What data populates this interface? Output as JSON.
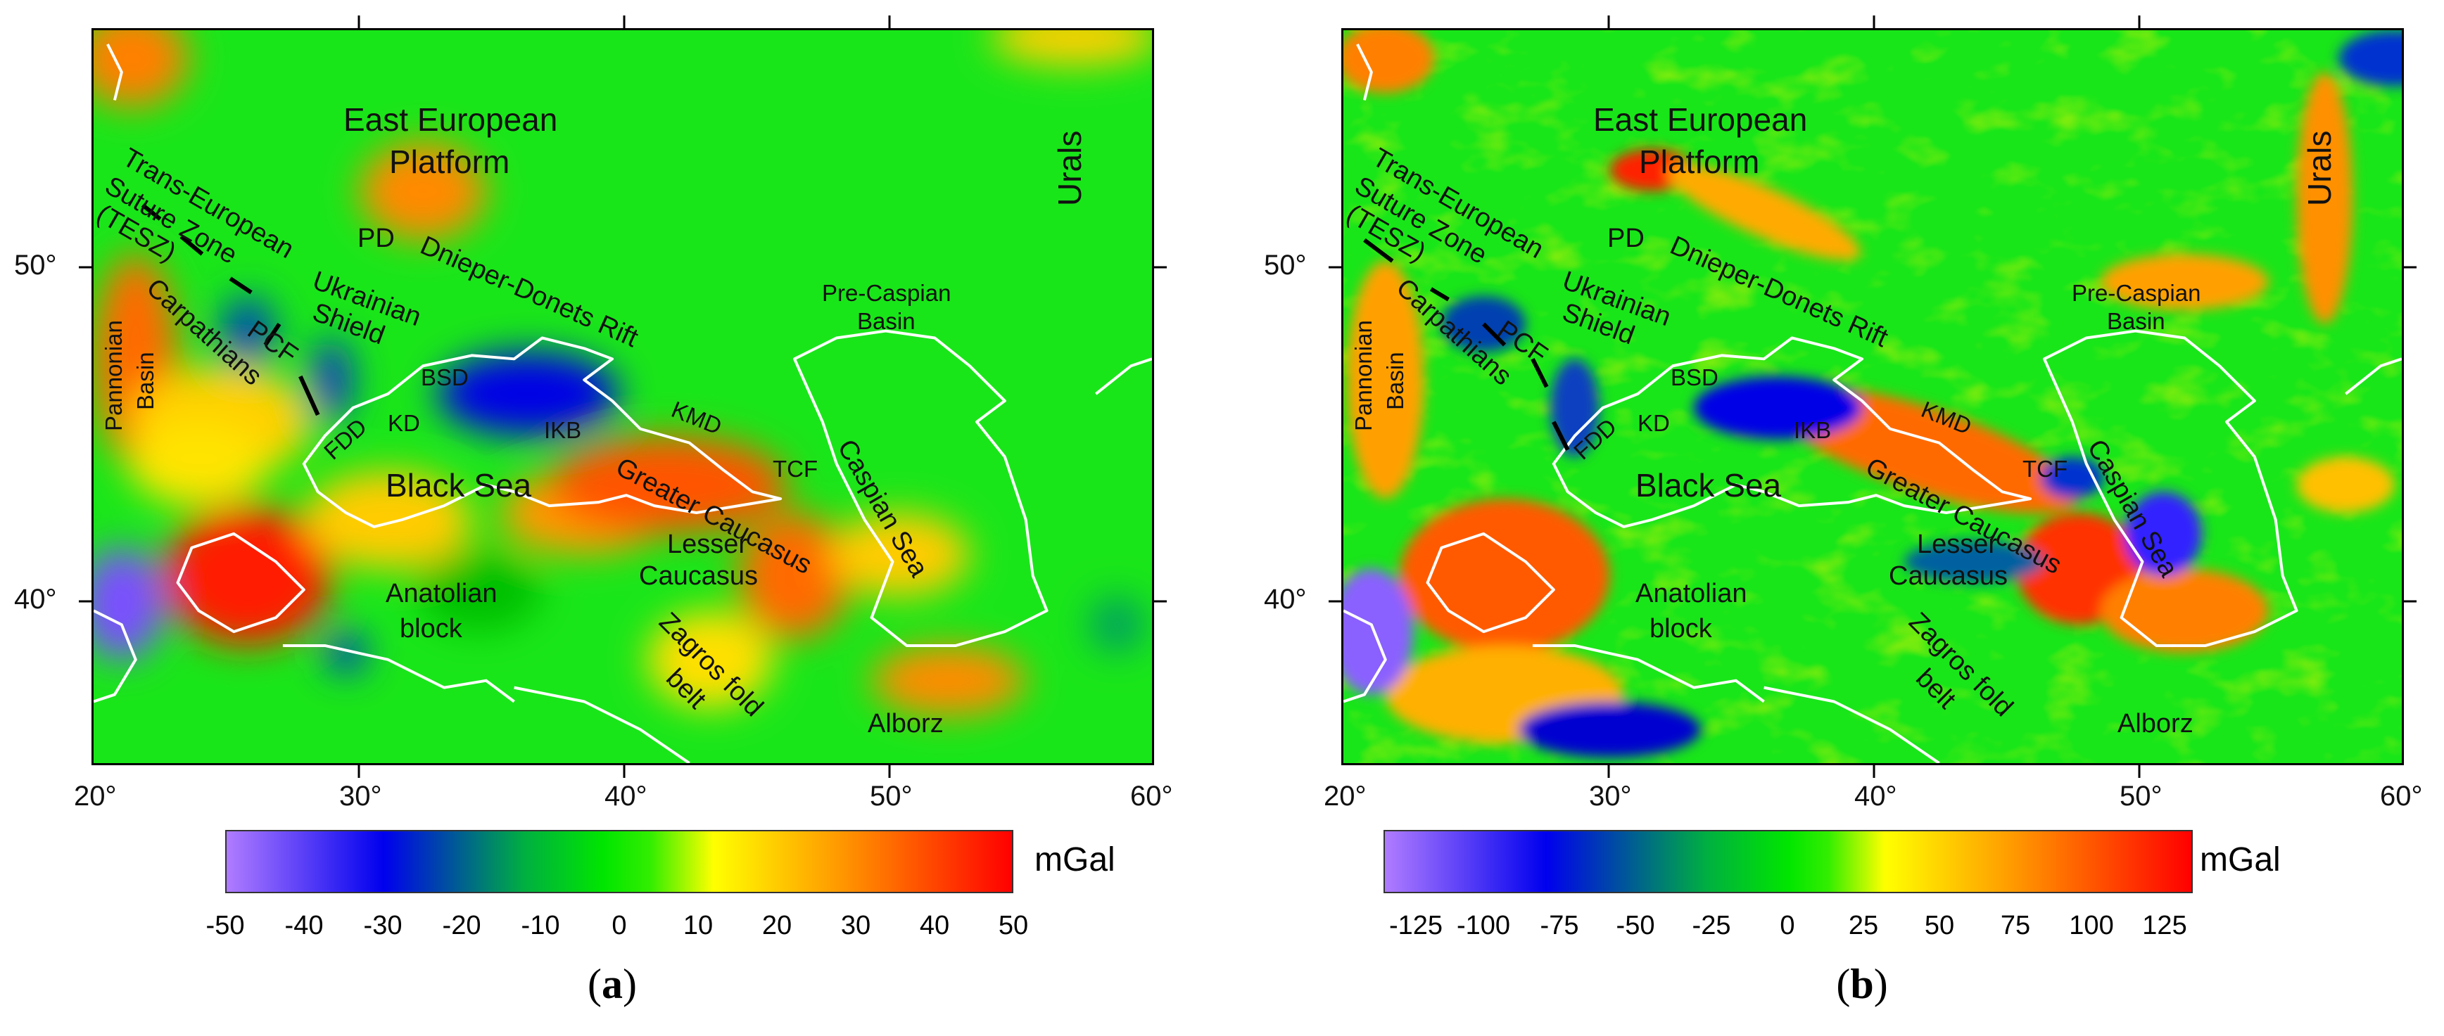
{
  "figure": {
    "axes": {
      "x_ticks": [
        "20°",
        "30°",
        "40°",
        "50°",
        "60°"
      ],
      "y_ticks": [
        "50°",
        "40°"
      ],
      "lon_range": [
        20,
        60
      ],
      "lat_range": [
        35,
        57
      ]
    },
    "place_labels": {
      "eep": "East European",
      "eep2": "Platform",
      "urals": "Urals",
      "tesz1": "Trans-European",
      "tesz2": "Suture Zone",
      "tesz3": "(TESZ)",
      "pd": "PD",
      "ddr": "Dnieper-Donets Rift",
      "pcb1": "Pre-Caspian",
      "pcb2": "Basin",
      "pannonian1": "Pannonian",
      "pannonian2": "Basin",
      "carpathians": "Carpathians",
      "pcf": "PCF",
      "us1": "Ukrainian",
      "us2": "Shield",
      "bsd": "BSD",
      "fdd": "FDD",
      "kd": "KD",
      "ikb": "IKB",
      "kmd": "KMD",
      "tcf": "TCF",
      "caspian": "Caspian Sea",
      "black_sea": "Black Sea",
      "gc": "Greater Caucasus",
      "lc1": "Lesser",
      "lc2": "Caucasus",
      "ab1": "Anatolian",
      "ab2": "block",
      "zf1": "Zagros fold",
      "zf2": "belt",
      "alborz": "Alborz"
    },
    "panels": [
      {
        "letter": "a",
        "unit": "mGal",
        "colorbar_ticks": [
          "-50",
          "-40",
          "-30",
          "-20",
          "-10",
          "0",
          "10",
          "20",
          "30",
          "40",
          "50"
        ],
        "colorbar_range": [
          -50,
          50
        ]
      },
      {
        "letter": "b",
        "unit": "mGal",
        "colorbar_ticks": [
          "-125",
          "-100",
          "-75",
          "-50",
          "-25",
          "0",
          "25",
          "50",
          "75",
          "100",
          "125"
        ],
        "colorbar_range": [
          -135,
          135
        ]
      }
    ],
    "colors": {
      "background_field": "#19e619",
      "coastline": "#ffffff",
      "colormap": [
        "#b07cff",
        "#0000ee",
        "#00e600",
        "#ffff00",
        "#ff9900",
        "#ff0000"
      ]
    }
  }
}
